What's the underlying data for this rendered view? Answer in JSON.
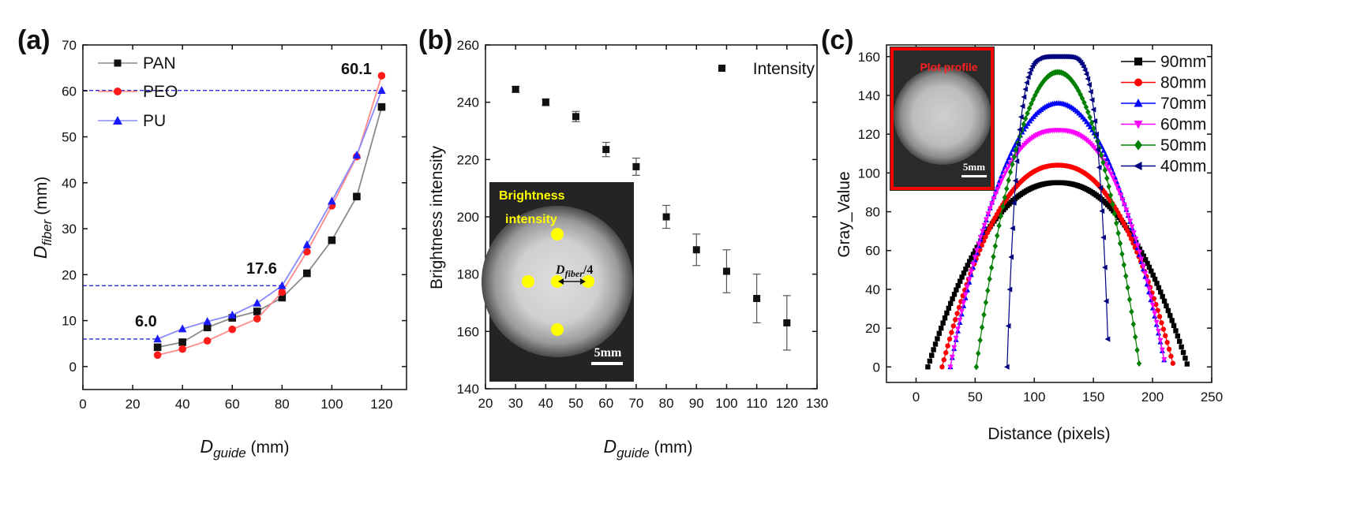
{
  "chart_data": [
    {
      "type": "line",
      "panel_label": "(a)",
      "xlabel_main": "D",
      "xlabel_sub": "guide",
      "xlabel_unit": " (mm)",
      "ylabel_main": "D",
      "ylabel_sub": "fiber",
      "ylabel_unit": " (mm)",
      "xlim": [
        0,
        130
      ],
      "ylim": [
        -5,
        70
      ],
      "xticks": [
        0,
        20,
        40,
        60,
        80,
        100,
        120
      ],
      "yticks": [
        0,
        10,
        20,
        30,
        40,
        50,
        60,
        70
      ],
      "x": [
        30,
        40,
        50,
        60,
        70,
        80,
        90,
        100,
        110,
        120
      ],
      "series": [
        {
          "name": "PAN",
          "color": "#111111",
          "line_color": "#8a8a8a",
          "marker": "square",
          "values": [
            4.2,
            5.3,
            8.5,
            10.6,
            12.0,
            15.0,
            20.3,
            27.5,
            37.0,
            56.5
          ]
        },
        {
          "name": "PEO",
          "color": "#ff1a1a",
          "line_color": "#ff8a8a",
          "marker": "circle",
          "values": [
            2.5,
            3.8,
            5.6,
            8.1,
            10.4,
            16.2,
            25.0,
            35.0,
            45.7,
            63.3
          ]
        },
        {
          "name": "PU",
          "color": "#1a1aff",
          "line_color": "#8a8aff",
          "marker": "triangle",
          "values": [
            6.0,
            8.2,
            9.8,
            11.2,
            13.8,
            17.6,
            26.5,
            36.0,
            46.0,
            60.1
          ]
        }
      ],
      "reference_lines": [
        {
          "y": 6.0,
          "x_end": 30,
          "label": "6.0"
        },
        {
          "y": 17.6,
          "x_end": 80,
          "label": "17.6"
        },
        {
          "y": 60.1,
          "x_end": 120,
          "label": "60.1"
        }
      ],
      "legend": "top-left"
    },
    {
      "type": "scatter",
      "panel_label": "(b)",
      "xlabel_main": "D",
      "xlabel_sub": "guide",
      "xlabel_unit": " (mm)",
      "ylabel": "Brightness intensity",
      "xlim": [
        20,
        130
      ],
      "ylim": [
        140,
        260
      ],
      "xticks": [
        20,
        30,
        40,
        50,
        60,
        70,
        80,
        90,
        100,
        110,
        120,
        130
      ],
      "yticks": [
        140,
        160,
        180,
        200,
        220,
        240,
        260
      ],
      "series": [
        {
          "name": "Intensity",
          "x": [
            30,
            40,
            50,
            60,
            70,
            80,
            90,
            100,
            110,
            120
          ],
          "values": [
            244.5,
            240.0,
            235.0,
            223.5,
            217.5,
            200.0,
            188.5,
            181.0,
            171.5,
            163.0
          ],
          "errors": [
            1.0,
            1.2,
            1.8,
            2.5,
            3.0,
            4.0,
            5.5,
            7.5,
            8.5,
            9.5
          ]
        }
      ],
      "legend": "top-right",
      "inset": {
        "title_line1": "Brightness",
        "title_line2": "intensity",
        "measure_main": "D",
        "measure_sub": "fiber",
        "measure_suffix": "/4",
        "scalebar": "5mm"
      }
    },
    {
      "type": "line",
      "panel_label": "(c)",
      "xlabel": "Distance (pixels)",
      "ylabel": "Gray_Value",
      "xlim": [
        -25,
        250
      ],
      "ylim": [
        -8,
        166
      ],
      "xticks": [
        0,
        50,
        100,
        150,
        200,
        250
      ],
      "yticks": [
        0,
        20,
        40,
        60,
        80,
        100,
        120,
        140,
        160
      ],
      "center": 120,
      "series": [
        {
          "name": "90mm",
          "color": "#000000",
          "marker": "square",
          "peak": 95,
          "half_width": 110,
          "power": 2.2
        },
        {
          "name": "80mm",
          "color": "#ff0000",
          "marker": "circle",
          "peak": 104,
          "half_width": 98,
          "power": 2.2
        },
        {
          "name": "70mm",
          "color": "#0000ff",
          "marker": "triangle",
          "peak": 136,
          "half_width": 91,
          "power": 2.0
        },
        {
          "name": "60mm",
          "color": "#ff00ff",
          "marker": "triangle-down",
          "peak": 122,
          "half_width": 91,
          "power": 2.4
        },
        {
          "name": "50mm",
          "color": "#008000",
          "marker": "diamond",
          "peak": 152,
          "half_width": 69,
          "power": 2.0
        },
        {
          "name": "40mm",
          "color": "#000080",
          "marker": "triangle-left",
          "peak": 160,
          "half_width": 43,
          "power": 5.0
        }
      ],
      "legend": "top-right",
      "inset": {
        "title": "Plot profile",
        "scalebar": "5mm"
      }
    }
  ]
}
